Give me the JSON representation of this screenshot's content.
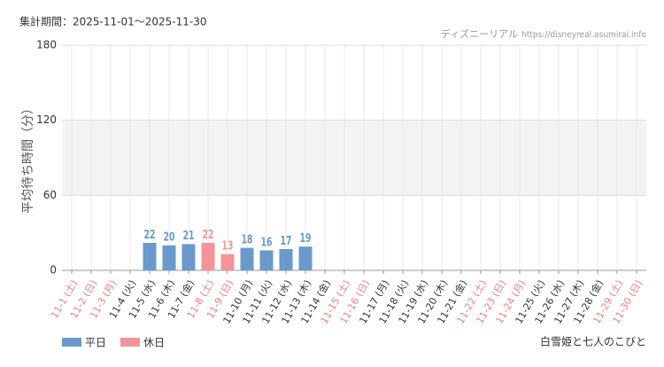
{
  "chart_data": {
    "type": "bar",
    "period": "集計期間：2025-11-01～2025-11-30",
    "source": "ディズニーリアル",
    "url": "https://disneyreal.asumirai.info",
    "y_label": "平均待ち時間（分）",
    "caption": "白雪姫と七人のこびと",
    "categories": [
      "11-1 (土)",
      "11-2 (日)",
      "11-3 (月)",
      "11-4 (火)",
      "11-5 (水)",
      "11-6 (木)",
      "11-7 (金)",
      "11-8 (土)",
      "11-9 (日)",
      "11-10 (月)",
      "11-11 (火)",
      "11-12 (水)",
      "11-13 (木)",
      "11-14 (金)",
      "11-15 (土)",
      "11-16 (日)",
      "11-17 (月)",
      "11-18 (火)",
      "11-19 (水)",
      "11-20 (木)",
      "11-21 (金)",
      "11-22 (土)",
      "11-23 (日)",
      "11-24 (月)",
      "11-25 (火)",
      "11-26 (水)",
      "11-27 (木)",
      "11-28 (金)",
      "11-29 (土)",
      "11-30 (日)"
    ],
    "category_colors": [
      "#f08080",
      "#f08080",
      "#f08080",
      "#333",
      "#333",
      "#333",
      "#333",
      "#f08080",
      "#f08080",
      "#333",
      "#333",
      "#333",
      "#333",
      "#333",
      "#f08080",
      "#f08080",
      "#333",
      "#333",
      "#333",
      "#333",
      "#333",
      "#f08080",
      "#f08080",
      "#f08080",
      "#333",
      "#333",
      "#333",
      "#333",
      "#f08080",
      "#f08080"
    ],
    "series": [
      {
        "name": "平日",
        "color": "#6a9acb",
        "values": [
          null,
          null,
          null,
          null,
          22,
          20,
          21,
          null,
          null,
          18,
          16,
          17,
          19,
          null,
          null,
          null,
          null,
          null,
          null,
          null,
          null,
          null,
          null,
          null,
          null,
          null,
          null,
          null,
          null,
          null
        ]
      },
      {
        "name": "休日",
        "color": "#f4949a",
        "values": [
          null,
          null,
          null,
          null,
          null,
          null,
          null,
          22,
          13,
          null,
          null,
          null,
          null,
          null,
          null,
          null,
          null,
          null,
          null,
          null,
          null,
          null,
          null,
          null,
          null,
          null,
          null,
          null,
          null,
          null
        ]
      }
    ],
    "ylim": [
      0,
      180
    ],
    "yticks": [
      0,
      60,
      120,
      180
    ],
    "shade_range": [
      60,
      120
    ],
    "grid": true
  }
}
